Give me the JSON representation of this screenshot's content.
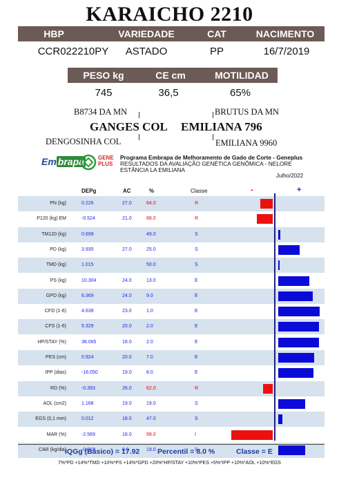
{
  "title": "KARAICHO 2210",
  "info_headers": [
    "HBP",
    "VARIEDADE",
    "CAT",
    "NACIMENTO"
  ],
  "info_values": [
    "CCR022210PY",
    "ASTADO",
    "PP",
    "16/7/2019"
  ],
  "perf_headers": [
    "PESO kg",
    "CE cm",
    "MOTILIDAD"
  ],
  "perf_values": [
    "745",
    "36,5",
    "65%"
  ],
  "pedigree": {
    "sire_sire": "B8734 DA MN",
    "sire": "GANGES COL",
    "sire_dam": "DENGOSINHA COL",
    "dam_sire": "BRUTUS DA MN",
    "dam": "EMILIANA 796",
    "dam_dam": "EMILIANA 9960"
  },
  "logos": {
    "em": "Em",
    "brapa": "brapa",
    "gene": "GENE",
    "plus": "PLUS"
  },
  "program": {
    "line1": "Programa Embrapa de Melhoramento de Gado de Corte - Geneplus",
    "line2": "RESULTADOS DA AVALIAÇÃO GENÉTICA GENÔMICA - NELORE",
    "line3": "ESTÂNCIA LA EMILIANA",
    "date": "Julho/2022"
  },
  "columns": {
    "depg": "DEPg",
    "ac": "AC",
    "pct": "%",
    "classe": "Classe",
    "minus": "-",
    "plus": "+"
  },
  "chart_data": {
    "type": "bar",
    "categories": [
      "PN (kg)",
      "P120 (kg) EM",
      "TM120 (kg)",
      "PD (kg)",
      "TMD (kg)",
      "PS (kg)",
      "GPD (kg)",
      "CFD (1-6)",
      "CFS (1-6)",
      "HP/STAY (%)",
      "PES (cm)",
      "IPP (dias)",
      "RD (%)",
      "AOL (cm2)",
      "EGS (0,1 mm)",
      "MAR (%)",
      "CAR (kg/dia)"
    ],
    "rows": [
      {
        "trait": "PN (kg)",
        "depg": "0.226",
        "ac": "27.0",
        "pct": "64.0",
        "classe": "R",
        "bar": -0.3
      },
      {
        "trait": "P120 (kg) EM",
        "depg": "-0.524",
        "ac": "21.0",
        "pct": "68.0",
        "classe": "R",
        "bar": -0.38
      },
      {
        "trait": "TM120 (kg)",
        "depg": "0.699",
        "ac": "",
        "pct": "49.0",
        "classe": "S",
        "bar": 0.05
      },
      {
        "trait": "PD (kg)",
        "depg": "3.935",
        "ac": "27.0",
        "pct": "25.0",
        "classe": "S",
        "bar": 0.5
      },
      {
        "trait": "TMD (kg)",
        "depg": "1.015",
        "ac": "",
        "pct": "50.0",
        "classe": "S",
        "bar": 0.03
      },
      {
        "trait": "PS (kg)",
        "depg": "10.304",
        "ac": "24.0",
        "pct": "13.0",
        "classe": "E",
        "bar": 0.73
      },
      {
        "trait": "GPD (kg)",
        "depg": "6.369",
        "ac": "24.0",
        "pct": "9.0",
        "classe": "E",
        "bar": 0.81
      },
      {
        "trait": "CFD (1-6)",
        "depg": "4.639",
        "ac": "23.0",
        "pct": "1.0",
        "classe": "E",
        "bar": 0.98
      },
      {
        "trait": "CFS (1-6)",
        "depg": "5.329",
        "ac": "20.0",
        "pct": "2.0",
        "classe": "E",
        "bar": 0.96
      },
      {
        "trait": "HP/STAY (%)",
        "depg": "38.065",
        "ac": "18.0",
        "pct": "2.0",
        "classe": "E",
        "bar": 0.96
      },
      {
        "trait": "PES (cm)",
        "depg": "0.924",
        "ac": "20.0",
        "pct": "7.0",
        "classe": "E",
        "bar": 0.85
      },
      {
        "trait": "IPP (dias)",
        "depg": "-16.050",
        "ac": "19.0",
        "pct": "8.0",
        "classe": "E",
        "bar": 0.83
      },
      {
        "trait": "RD (%)",
        "depg": "-0.393",
        "ac": "26.0",
        "pct": "62.0",
        "classe": "R",
        "bar": -0.24
      },
      {
        "trait": "AOL (cm2)",
        "depg": "1.168",
        "ac": "19.0",
        "pct": "19.0",
        "classe": "S",
        "bar": 0.63
      },
      {
        "trait": "EGS (0,1 mm)",
        "depg": "0.012",
        "ac": "18.0",
        "pct": "47.0",
        "classe": "S",
        "bar": 0.1
      },
      {
        "trait": "MAR (%)",
        "depg": "-2.569",
        "ac": "18.0",
        "pct": "99.0",
        "classe": "I",
        "bar": -0.98
      },
      {
        "trait": "CAR (kg/dia)",
        "depg": "-0.018",
        "ac": "9.0",
        "pct": "19.0",
        "classe": "S",
        "bar": 0.63
      }
    ]
  },
  "summary": {
    "iqgg": "IQGg (Básico) = 17.92",
    "percentil": "Percentil = 8.0 %",
    "classe": "Classe = E"
  },
  "formula": "7%*PD +14%*TMD +10%*PS +14%*GPD +20%*HP/STAY +10%*PES +5%*IPP +10%*AOL +10%*EGS",
  "colors": {
    "header_bg": "#6b5a55",
    "shade": "#d6e2ee",
    "neg": "#ee1010",
    "pos": "#0b0bd8"
  }
}
